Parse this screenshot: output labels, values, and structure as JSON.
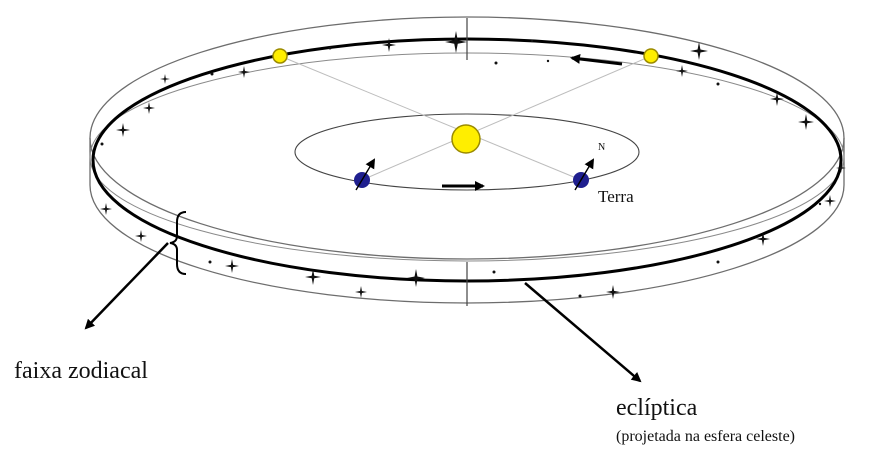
{
  "labels": {
    "earth": "Terra",
    "north": "N",
    "zodiac_band": "faixa zodiacal",
    "ecliptic": "eclíptica",
    "ecliptic_note": "(projetada na esfera celeste)"
  },
  "colors": {
    "sun": "#ffee00",
    "sun_stroke": "#9a8a00",
    "earth": "#1f1f8f",
    "line": "#000000",
    "band_edge": "#6d6d6d"
  }
}
